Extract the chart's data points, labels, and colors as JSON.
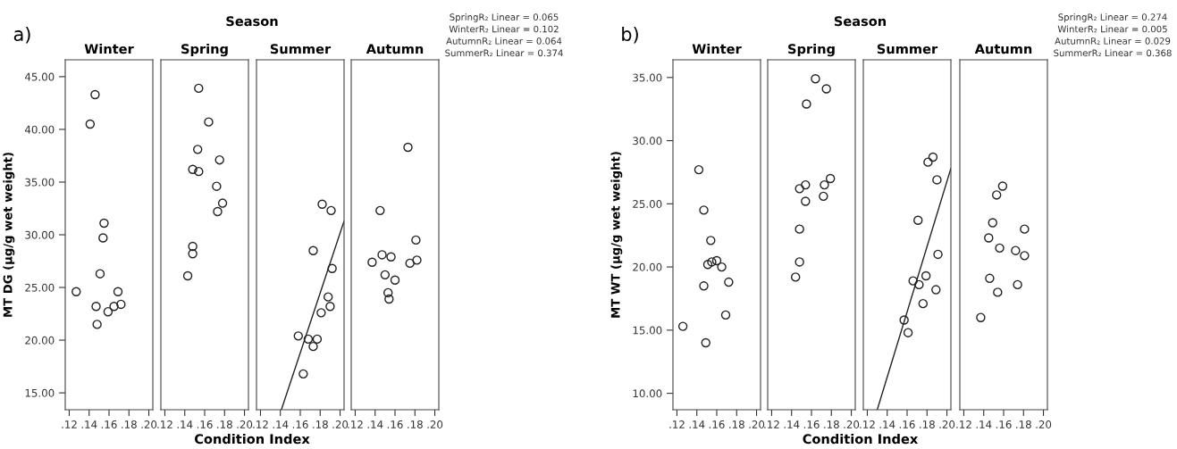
{
  "chart_data": [
    {
      "type": "scatter",
      "title": "Winter",
      "ylabel": "MT DG (µg/g wet weight)",
      "annotations": [
        "a)"
      ],
      "marker": "circle",
      "xlim": [
        0.116,
        0.204
      ],
      "ylim": [
        13.4,
        46.6
      ],
      "xticks": [
        {
          "value": 0.12,
          "label": ".12"
        },
        {
          "value": 0.14,
          "label": ".14"
        },
        {
          "value": 0.16,
          "label": ".16"
        },
        {
          "value": 0.18,
          "label": ".18"
        },
        {
          "value": 0.2,
          "label": ".20"
        }
      ],
      "yticks": [
        {
          "value": 15,
          "label": "15.00"
        },
        {
          "value": 20,
          "label": "20.00"
        },
        {
          "value": 25,
          "label": "25.00"
        },
        {
          "value": 30,
          "label": "30.00"
        },
        {
          "value": 35,
          "label": "35.00"
        },
        {
          "value": 40,
          "label": "40.00"
        },
        {
          "value": 45,
          "label": "45.00"
        }
      ],
      "series": [
        {
          "color": "#222222",
          "x": [
            0.146,
            0.141,
            0.155,
            0.154,
            0.151,
            0.127,
            0.169,
            0.147,
            0.172,
            0.165,
            0.159,
            0.148
          ],
          "values": [
            43.3,
            40.5,
            31.1,
            29.7,
            26.3,
            24.6,
            24.6,
            23.2,
            23.4,
            23.2,
            22.7,
            21.5
          ]
        }
      ]
    },
    {
      "type": "scatter",
      "title": "Spring",
      "subtitle": "Season",
      "xlabel": "Condition Index",
      "tick_labels": "x",
      "marker": "circle",
      "xlim": [
        0.116,
        0.204
      ],
      "ylim": [
        13.4,
        46.6
      ],
      "xticks": [
        {
          "value": 0.12,
          "label": ".12"
        },
        {
          "value": 0.14,
          "label": ".14"
        },
        {
          "value": 0.16,
          "label": ".16"
        },
        {
          "value": 0.18,
          "label": ".18"
        },
        {
          "value": 0.2,
          "label": ".20"
        }
      ],
      "series": [
        {
          "color": "#222222",
          "x": [
            0.154,
            0.164,
            0.153,
            0.175,
            0.148,
            0.154,
            0.172,
            0.178,
            0.173,
            0.148,
            0.148,
            0.143
          ],
          "values": [
            43.9,
            40.7,
            38.1,
            37.1,
            36.2,
            36.0,
            34.6,
            33.0,
            32.2,
            28.9,
            28.2,
            26.1
          ]
        }
      ]
    },
    {
      "type": "scatter",
      "title": "Summer",
      "tick_labels": "x",
      "marker": "circle",
      "xlim": [
        0.116,
        0.204
      ],
      "ylim": [
        13.4,
        46.6
      ],
      "xticks": [
        {
          "value": 0.12,
          "label": ".12"
        },
        {
          "value": 0.14,
          "label": ".14"
        },
        {
          "value": 0.16,
          "label": ".16"
        },
        {
          "value": 0.18,
          "label": ".18"
        },
        {
          "value": 0.2,
          "label": ".20"
        }
      ],
      "series": [
        {
          "color": "#222222",
          "x": [
            0.182,
            0.191,
            0.173,
            0.192,
            0.188,
            0.19,
            0.181,
            0.158,
            0.168,
            0.177,
            0.173,
            0.163
          ],
          "values": [
            32.9,
            32.3,
            28.5,
            26.8,
            24.1,
            23.2,
            22.6,
            20.4,
            20.1,
            20.1,
            19.4,
            16.8
          ]
        },
        {
          "type": "line",
          "marker": "none",
          "color": "#222222",
          "x": [
            0.141,
            0.204
          ],
          "values": [
            13.4,
            31.3
          ]
        }
      ]
    },
    {
      "type": "scatter",
      "title": "Autumn",
      "tick_labels": "x",
      "marker": "circle",
      "annotations": [
        "SpringR₂ Linear = 0.065",
        "WinterR₂ Linear = 0.102",
        "AutumnR₂ Linear = 0.064",
        "SummerR₂ Linear = 0.374"
      ],
      "xlim": [
        0.116,
        0.204
      ],
      "ylim": [
        13.4,
        46.6
      ],
      "xticks": [
        {
          "value": 0.12,
          "label": ".12"
        },
        {
          "value": 0.14,
          "label": ".14"
        },
        {
          "value": 0.16,
          "label": ".16"
        },
        {
          "value": 0.18,
          "label": ".18"
        },
        {
          "value": 0.2,
          "label": ".20"
        }
      ],
      "series": [
        {
          "color": "#222222",
          "x": [
            0.173,
            0.145,
            0.181,
            0.147,
            0.156,
            0.137,
            0.175,
            0.182,
            0.15,
            0.16,
            0.153,
            0.154
          ],
          "values": [
            38.3,
            32.3,
            29.5,
            28.1,
            27.9,
            27.4,
            27.3,
            27.6,
            26.2,
            25.7,
            24.5,
            23.9
          ]
        }
      ]
    },
    {
      "type": "scatter",
      "title": "Winter",
      "ylabel": "MT WT (µg/g wet weight)",
      "annotations": [
        "b)"
      ],
      "marker": "circle",
      "xlim": [
        0.116,
        0.204
      ],
      "ylim": [
        8.7,
        36.4
      ],
      "xticks": [
        {
          "value": 0.12,
          "label": ".12"
        },
        {
          "value": 0.14,
          "label": ".14"
        },
        {
          "value": 0.16,
          "label": ".16"
        },
        {
          "value": 0.18,
          "label": ".18"
        },
        {
          "value": 0.2,
          "label": ".20"
        }
      ],
      "yticks": [
        {
          "value": 10,
          "label": "10.00"
        },
        {
          "value": 15,
          "label": "15.00"
        },
        {
          "value": 20,
          "label": "20.00"
        },
        {
          "value": 25,
          "label": "25.00"
        },
        {
          "value": 30,
          "label": "30.00"
        },
        {
          "value": 35,
          "label": "35.00"
        }
      ],
      "series": [
        {
          "color": "#222222",
          "x": [
            0.142,
            0.147,
            0.154,
            0.151,
            0.155,
            0.16,
            0.165,
            0.147,
            0.172,
            0.169,
            0.126,
            0.149
          ],
          "values": [
            27.7,
            24.5,
            22.1,
            20.2,
            20.4,
            20.5,
            20.0,
            18.5,
            18.8,
            16.2,
            15.3,
            14.0
          ]
        }
      ]
    },
    {
      "type": "scatter",
      "title": "Spring",
      "subtitle": "Season",
      "xlabel": "Condition Index",
      "tick_labels": "x",
      "marker": "circle",
      "xlim": [
        0.116,
        0.204
      ],
      "ylim": [
        8.7,
        36.4
      ],
      "xticks": [
        {
          "value": 0.12,
          "label": ".12"
        },
        {
          "value": 0.14,
          "label": ".14"
        },
        {
          "value": 0.16,
          "label": ".16"
        },
        {
          "value": 0.18,
          "label": ".18"
        },
        {
          "value": 0.2,
          "label": ".20"
        }
      ],
      "series": [
        {
          "color": "#222222",
          "x": [
            0.164,
            0.175,
            0.155,
            0.179,
            0.173,
            0.154,
            0.148,
            0.172,
            0.154,
            0.148,
            0.148,
            0.144
          ],
          "values": [
            34.9,
            34.1,
            32.9,
            27.0,
            26.5,
            26.5,
            26.2,
            25.6,
            25.2,
            23.0,
            20.4,
            19.2
          ]
        }
      ]
    },
    {
      "type": "scatter",
      "title": "Summer",
      "tick_labels": "x",
      "marker": "circle",
      "xlim": [
        0.116,
        0.204
      ],
      "ylim": [
        8.7,
        36.4
      ],
      "xticks": [
        {
          "value": 0.12,
          "label": ".12"
        },
        {
          "value": 0.14,
          "label": ".14"
        },
        {
          "value": 0.16,
          "label": ".16"
        },
        {
          "value": 0.18,
          "label": ".18"
        },
        {
          "value": 0.2,
          "label": ".20"
        }
      ],
      "series": [
        {
          "color": "#222222",
          "x": [
            0.186,
            0.181,
            0.19,
            0.171,
            0.191,
            0.179,
            0.166,
            0.172,
            0.189,
            0.176,
            0.157,
            0.161
          ],
          "values": [
            28.7,
            28.3,
            26.9,
            23.7,
            21.0,
            19.3,
            18.9,
            18.6,
            18.2,
            17.1,
            15.8,
            14.8
          ]
        },
        {
          "type": "line",
          "marker": "none",
          "color": "#222222",
          "x": [
            0.13,
            0.204
          ],
          "values": [
            8.7,
            27.8
          ]
        }
      ]
    },
    {
      "type": "scatter",
      "title": "Autumn",
      "tick_labels": "x",
      "marker": "circle",
      "annotations": [
        "SpringR₂ Linear = 0.274",
        "WinterR₂ Linear = 0.005",
        "AutumnR₂ Linear = 0.029",
        "SummerR₂ Linear = 0.368"
      ],
      "xlim": [
        0.116,
        0.204
      ],
      "ylim": [
        8.7,
        36.4
      ],
      "xticks": [
        {
          "value": 0.12,
          "label": ".12"
        },
        {
          "value": 0.14,
          "label": ".14"
        },
        {
          "value": 0.16,
          "label": ".16"
        },
        {
          "value": 0.18,
          "label": ".18"
        },
        {
          "value": 0.2,
          "label": ".20"
        }
      ],
      "series": [
        {
          "color": "#222222",
          "x": [
            0.159,
            0.153,
            0.149,
            0.181,
            0.145,
            0.156,
            0.172,
            0.181,
            0.146,
            0.174,
            0.154,
            0.137
          ],
          "values": [
            26.4,
            25.7,
            23.5,
            23.0,
            22.3,
            21.5,
            21.3,
            20.9,
            19.1,
            18.6,
            18.0,
            16.0
          ]
        }
      ]
    }
  ]
}
